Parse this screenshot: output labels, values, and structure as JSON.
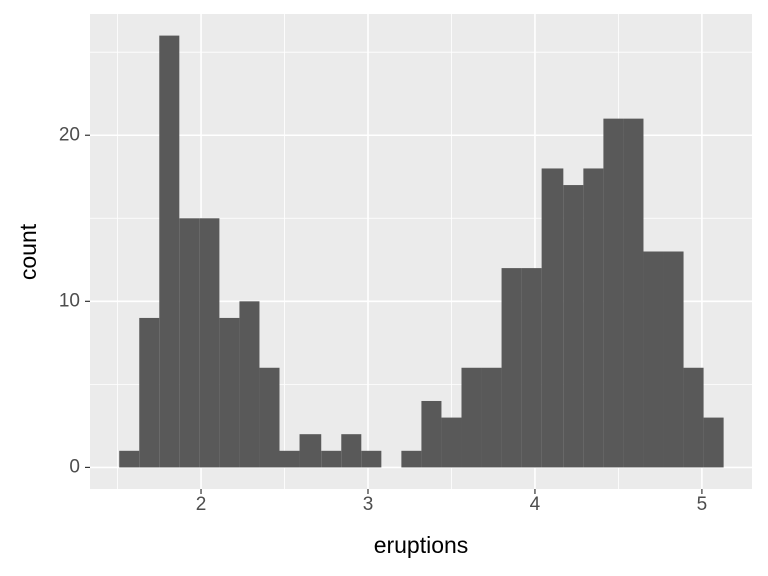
{
  "chart_data": {
    "type": "histogram",
    "x_label": "eruptions",
    "y_label": "count",
    "bins": [
      1.51,
      1.63,
      1.75,
      1.87,
      1.99,
      2.11,
      2.23,
      2.35,
      2.47,
      2.59,
      2.72,
      2.84,
      2.96,
      3.08,
      3.2,
      3.32,
      3.44,
      3.56,
      3.68,
      3.8,
      3.92,
      4.04,
      4.17,
      4.29,
      4.41,
      4.53,
      4.65,
      4.77,
      4.89,
      5.01,
      5.13
    ],
    "values": [
      1,
      9,
      26,
      15,
      15,
      9,
      10,
      6,
      1,
      2,
      1,
      2,
      1,
      0,
      1,
      4,
      3,
      6,
      6,
      12,
      12,
      18,
      17,
      18,
      21,
      21,
      13,
      13,
      6,
      3
    ],
    "color": "#595959",
    "xlim": [
      1.335,
      5.3
    ],
    "ylim": [
      -1.3,
      27.3
    ],
    "xticks": [
      2,
      3,
      4,
      5
    ],
    "yticks": [
      0,
      10,
      20
    ],
    "x_minor_grid": [
      1.5,
      2.5,
      3.5,
      4.5
    ],
    "y_minor_grid": [
      5,
      15,
      25
    ],
    "grid": true
  }
}
